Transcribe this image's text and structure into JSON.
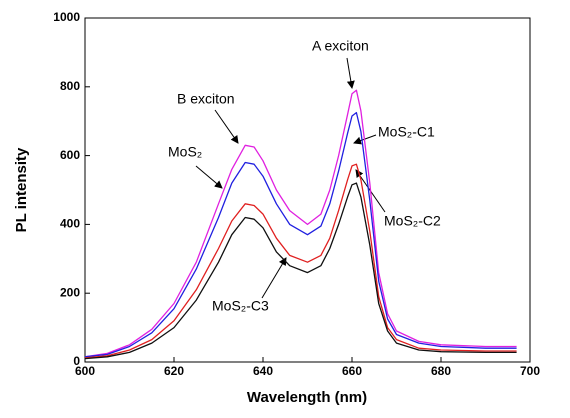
{
  "chart_data": {
    "type": "line",
    "xlabel": "Wavelength (nm)",
    "ylabel": "PL intensity",
    "x": [
      600,
      605,
      610,
      615,
      620,
      625,
      630,
      633,
      636,
      638,
      640,
      643,
      646,
      650,
      653,
      655,
      657,
      659,
      660,
      661,
      662,
      664,
      666,
      668,
      670,
      675,
      680,
      690,
      697
    ],
    "series": [
      {
        "name": "MoS₂",
        "color": "#e020e0",
        "values": [
          15,
          25,
          50,
          95,
          170,
          290,
          460,
          560,
          630,
          625,
          585,
          500,
          440,
          400,
          430,
          500,
          600,
          720,
          780,
          790,
          730,
          520,
          260,
          140,
          90,
          60,
          50,
          45,
          45
        ]
      },
      {
        "name": "MoS₂-C1",
        "color": "#2020e0",
        "values": [
          15,
          22,
          45,
          85,
          155,
          270,
          420,
          520,
          580,
          575,
          540,
          460,
          400,
          370,
          395,
          460,
          555,
          665,
          715,
          725,
          670,
          470,
          235,
          125,
          80,
          55,
          45,
          40,
          40
        ]
      },
      {
        "name": "MoS₂-C2",
        "color": "#e02020",
        "values": [
          12,
          18,
          35,
          65,
          120,
          210,
          330,
          410,
          460,
          455,
          430,
          360,
          310,
          290,
          310,
          360,
          440,
          530,
          570,
          575,
          530,
          380,
          190,
          100,
          65,
          40,
          35,
          32,
          32
        ]
      },
      {
        "name": "MoS₂-C3",
        "color": "#101010",
        "values": [
          10,
          15,
          28,
          55,
          100,
          180,
          290,
          370,
          420,
          415,
          390,
          320,
          280,
          260,
          280,
          330,
          400,
          480,
          515,
          520,
          480,
          340,
          170,
          90,
          55,
          35,
          30,
          28,
          28
        ]
      }
    ],
    "annotations": [
      "A exciton",
      "B exciton"
    ],
    "xlim": [
      600,
      700
    ],
    "xticks": [
      600,
      620,
      640,
      660,
      680,
      700
    ],
    "ylim": [
      0,
      1000
    ],
    "yticks": [
      0,
      200,
      400,
      600,
      800,
      1000
    ]
  }
}
